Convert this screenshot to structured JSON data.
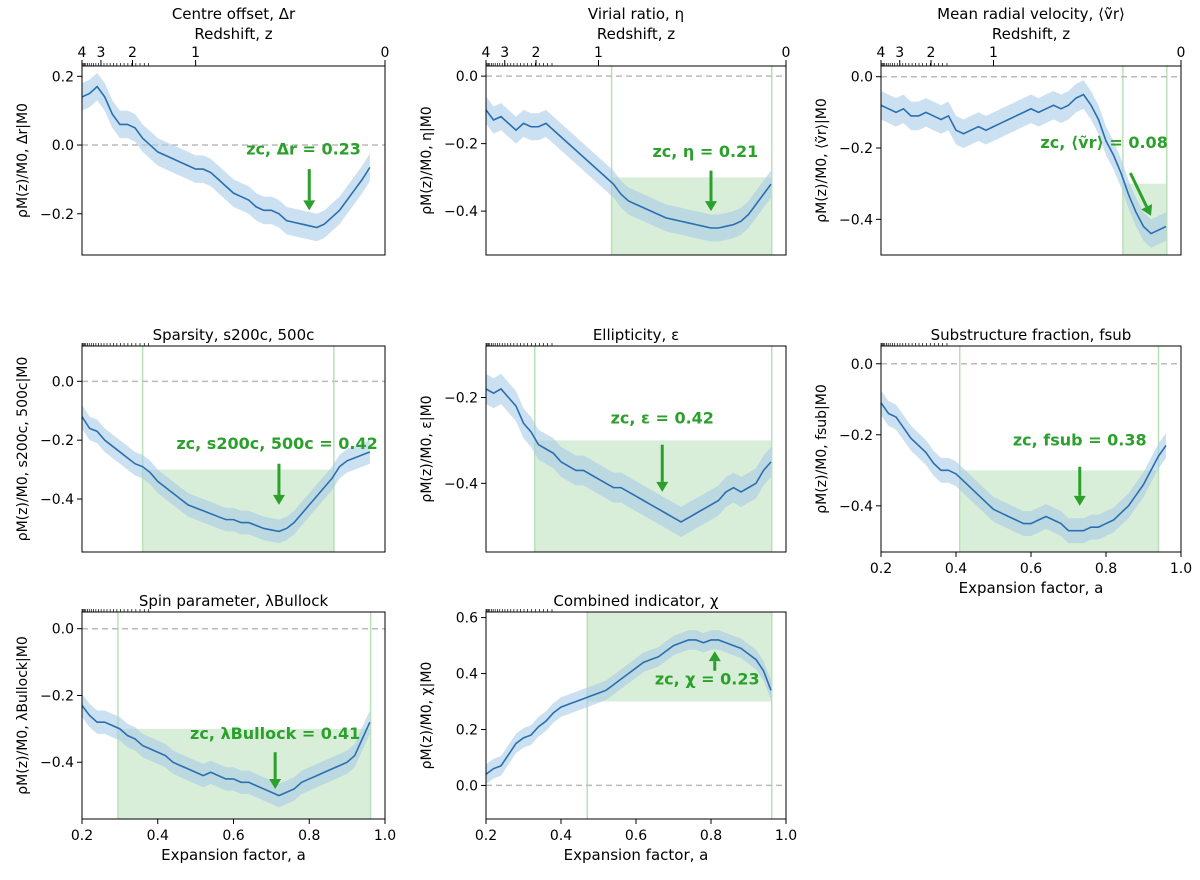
{
  "figure": {
    "xlabel": "Expansion factor, a",
    "top_axis_label": "Redshift, z",
    "colors": {
      "line": "#2a6fb0",
      "band": "#a9cbe8",
      "highlight": "#b9e0b9",
      "annotation": "#2ca02c",
      "zero": "#bbbbbb"
    }
  },
  "chart_data": [
    {
      "id": "centre-offset",
      "type": "line",
      "title": "Centre offset, Δr",
      "ylabel": "ρM(z)/M0, Δr|M0",
      "top_axis": true,
      "show_xticklabels": false,
      "xlim": [
        0.2,
        1.0
      ],
      "ylim": [
        -0.32,
        0.23
      ],
      "yticks": [
        0.2,
        0.0,
        -0.2
      ],
      "ytick_labels": [
        "0.2",
        "0.0",
        "−0.2"
      ],
      "highlight": null,
      "highlight_level": null,
      "annotation": {
        "text": "zc, Δr = 0.23",
        "label_pos": [
          0.785,
          -0.028
        ],
        "arrow_from": [
          0.8,
          -0.07
        ],
        "arrow_to": [
          0.8,
          -0.19
        ]
      },
      "x": [
        0.2,
        0.22,
        0.24,
        0.26,
        0.28,
        0.3,
        0.32,
        0.34,
        0.36,
        0.38,
        0.4,
        0.42,
        0.44,
        0.46,
        0.48,
        0.5,
        0.52,
        0.54,
        0.56,
        0.58,
        0.6,
        0.62,
        0.64,
        0.66,
        0.68,
        0.7,
        0.72,
        0.74,
        0.76,
        0.78,
        0.8,
        0.82,
        0.84,
        0.86,
        0.88,
        0.9,
        0.92,
        0.94,
        0.96
      ],
      "y": [
        0.14,
        0.15,
        0.17,
        0.14,
        0.09,
        0.06,
        0.06,
        0.05,
        0.02,
        0.0,
        -0.02,
        -0.03,
        -0.04,
        -0.05,
        -0.06,
        -0.07,
        -0.07,
        -0.08,
        -0.1,
        -0.12,
        -0.14,
        -0.15,
        -0.16,
        -0.18,
        -0.19,
        -0.19,
        -0.2,
        -0.22,
        -0.225,
        -0.23,
        -0.235,
        -0.24,
        -0.23,
        -0.21,
        -0.19,
        -0.16,
        -0.13,
        -0.1,
        -0.065
      ],
      "band_halfwidth": 0.04
    },
    {
      "id": "virial-ratio",
      "type": "line",
      "title": "Virial ratio, η",
      "ylabel": "ρM(z)/M0, η|M0",
      "top_axis": true,
      "show_xticklabels": false,
      "xlim": [
        0.2,
        1.0
      ],
      "ylim": [
        -0.53,
        0.03
      ],
      "yticks": [
        0.0,
        -0.2,
        -0.4
      ],
      "ytick_labels": [
        "0.0",
        "−0.2",
        "−0.4"
      ],
      "highlight": [
        0.535,
        0.962
      ],
      "highlight_level": -0.3,
      "annotation": {
        "text": "zc, η = 0.21",
        "label_pos": [
          0.785,
          -0.24
        ],
        "arrow_from": [
          0.8,
          -0.28
        ],
        "arrow_to": [
          0.8,
          -0.4
        ]
      },
      "x": [
        0.2,
        0.22,
        0.24,
        0.26,
        0.28,
        0.3,
        0.32,
        0.34,
        0.36,
        0.38,
        0.4,
        0.42,
        0.44,
        0.46,
        0.48,
        0.5,
        0.52,
        0.54,
        0.56,
        0.58,
        0.6,
        0.62,
        0.64,
        0.66,
        0.68,
        0.7,
        0.72,
        0.74,
        0.76,
        0.78,
        0.8,
        0.82,
        0.84,
        0.86,
        0.88,
        0.9,
        0.92,
        0.94,
        0.96
      ],
      "y": [
        -0.1,
        -0.13,
        -0.12,
        -0.14,
        -0.16,
        -0.14,
        -0.15,
        -0.15,
        -0.14,
        -0.16,
        -0.18,
        -0.2,
        -0.22,
        -0.24,
        -0.26,
        -0.28,
        -0.3,
        -0.32,
        -0.35,
        -0.37,
        -0.38,
        -0.39,
        -0.4,
        -0.41,
        -0.42,
        -0.425,
        -0.43,
        -0.435,
        -0.44,
        -0.445,
        -0.45,
        -0.45,
        -0.445,
        -0.44,
        -0.43,
        -0.41,
        -0.38,
        -0.35,
        -0.32
      ],
      "band_halfwidth": 0.04
    },
    {
      "id": "mean-radial-velocity",
      "type": "line",
      "title": "Mean radial velocity, ⟨ṽr⟩",
      "ylabel": "ρM(z)/M0, ⟨ṽr⟩|M0",
      "top_axis": true,
      "show_xticklabels": false,
      "xlim": [
        0.2,
        1.0
      ],
      "ylim": [
        -0.5,
        0.03
      ],
      "yticks": [
        0.0,
        -0.2,
        -0.4
      ],
      "ytick_labels": [
        "0.0",
        "−0.2",
        "−0.4"
      ],
      "highlight": [
        0.845,
        0.962
      ],
      "highlight_level": -0.3,
      "annotation": {
        "text": "zc, ⟨ṽr⟩ = 0.08",
        "label_pos": [
          0.795,
          -0.2
        ],
        "arrow_from": [
          0.865,
          -0.27
        ],
        "arrow_to": [
          0.92,
          -0.39
        ]
      },
      "x": [
        0.2,
        0.22,
        0.24,
        0.26,
        0.28,
        0.3,
        0.32,
        0.34,
        0.36,
        0.38,
        0.4,
        0.42,
        0.44,
        0.46,
        0.48,
        0.5,
        0.52,
        0.54,
        0.56,
        0.58,
        0.6,
        0.62,
        0.64,
        0.66,
        0.68,
        0.7,
        0.72,
        0.74,
        0.76,
        0.78,
        0.8,
        0.82,
        0.84,
        0.86,
        0.88,
        0.9,
        0.92,
        0.94,
        0.96
      ],
      "y": [
        -0.08,
        -0.09,
        -0.1,
        -0.09,
        -0.11,
        -0.11,
        -0.1,
        -0.11,
        -0.12,
        -0.11,
        -0.15,
        -0.16,
        -0.15,
        -0.14,
        -0.15,
        -0.14,
        -0.13,
        -0.12,
        -0.11,
        -0.1,
        -0.09,
        -0.1,
        -0.09,
        -0.08,
        -0.09,
        -0.08,
        -0.06,
        -0.05,
        -0.08,
        -0.12,
        -0.18,
        -0.22,
        -0.27,
        -0.33,
        -0.38,
        -0.42,
        -0.44,
        -0.43,
        -0.42
      ],
      "band_halfwidth": 0.04
    },
    {
      "id": "sparsity",
      "type": "line",
      "title": "Sparsity, s200c, 500c",
      "ylabel": "ρM(z)/M0, s200c, 500c|M0",
      "top_axis": false,
      "show_xticklabels": false,
      "xlim": [
        0.2,
        1.0
      ],
      "ylim": [
        -0.58,
        0.12
      ],
      "yticks": [
        0.0,
        -0.2,
        -0.4
      ],
      "ytick_labels": [
        "0.0",
        "−0.2",
        "−0.4"
      ],
      "highlight": [
        0.36,
        0.865
      ],
      "highlight_level": -0.3,
      "annotation": {
        "text": "zc, s200c, 500c = 0.42",
        "label_pos": [
          0.715,
          -0.23
        ],
        "arrow_from": [
          0.72,
          -0.28
        ],
        "arrow_to": [
          0.72,
          -0.42
        ]
      },
      "x": [
        0.2,
        0.22,
        0.24,
        0.26,
        0.28,
        0.3,
        0.32,
        0.34,
        0.36,
        0.38,
        0.4,
        0.42,
        0.44,
        0.46,
        0.48,
        0.5,
        0.52,
        0.54,
        0.56,
        0.58,
        0.6,
        0.62,
        0.64,
        0.66,
        0.68,
        0.7,
        0.72,
        0.74,
        0.76,
        0.78,
        0.8,
        0.82,
        0.84,
        0.86,
        0.88,
        0.9,
        0.92,
        0.94,
        0.96
      ],
      "y": [
        -0.12,
        -0.16,
        -0.17,
        -0.2,
        -0.22,
        -0.24,
        -0.26,
        -0.28,
        -0.29,
        -0.31,
        -0.34,
        -0.36,
        -0.38,
        -0.4,
        -0.42,
        -0.43,
        -0.44,
        -0.45,
        -0.46,
        -0.47,
        -0.47,
        -0.48,
        -0.48,
        -0.49,
        -0.5,
        -0.505,
        -0.51,
        -0.5,
        -0.48,
        -0.45,
        -0.42,
        -0.39,
        -0.36,
        -0.33,
        -0.29,
        -0.27,
        -0.26,
        -0.25,
        -0.24
      ],
      "band_halfwidth": 0.04
    },
    {
      "id": "ellipticity",
      "type": "line",
      "title": "Ellipticity, ε",
      "ylabel": "ρM(z)/M0, ε|M0",
      "top_axis": false,
      "show_xticklabels": false,
      "xlim": [
        0.2,
        1.0
      ],
      "ylim": [
        -0.56,
        -0.08
      ],
      "yticks": [
        -0.2,
        -0.4
      ],
      "ytick_labels": [
        "−0.2",
        "−0.4"
      ],
      "highlight": [
        0.33,
        0.962
      ],
      "highlight_level": -0.3,
      "annotation": {
        "text": "zc, ε = 0.42",
        "label_pos": [
          0.67,
          -0.26
        ],
        "arrow_from": [
          0.67,
          -0.31
        ],
        "arrow_to": [
          0.67,
          -0.42
        ]
      },
      "x": [
        0.2,
        0.22,
        0.24,
        0.26,
        0.28,
        0.3,
        0.32,
        0.34,
        0.36,
        0.38,
        0.4,
        0.42,
        0.44,
        0.46,
        0.48,
        0.5,
        0.52,
        0.54,
        0.56,
        0.58,
        0.6,
        0.62,
        0.64,
        0.66,
        0.68,
        0.7,
        0.72,
        0.74,
        0.76,
        0.78,
        0.8,
        0.82,
        0.84,
        0.86,
        0.88,
        0.9,
        0.92,
        0.94,
        0.96
      ],
      "y": [
        -0.18,
        -0.19,
        -0.18,
        -0.2,
        -0.22,
        -0.26,
        -0.28,
        -0.31,
        -0.32,
        -0.33,
        -0.35,
        -0.36,
        -0.37,
        -0.37,
        -0.38,
        -0.39,
        -0.4,
        -0.41,
        -0.41,
        -0.42,
        -0.43,
        -0.44,
        -0.45,
        -0.46,
        -0.47,
        -0.48,
        -0.49,
        -0.48,
        -0.47,
        -0.46,
        -0.45,
        -0.44,
        -0.42,
        -0.41,
        -0.42,
        -0.41,
        -0.4,
        -0.37,
        -0.35
      ],
      "band_halfwidth": 0.035
    },
    {
      "id": "substructure-fraction",
      "type": "line",
      "title": "Substructure fraction, fsub",
      "ylabel": "ρM(z)/M0, fsub|M0",
      "top_axis": false,
      "show_xticklabels": true,
      "xlim": [
        0.2,
        1.0
      ],
      "ylim": [
        -0.53,
        0.05
      ],
      "xticks": [
        0.2,
        0.4,
        0.6,
        0.8,
        1.0
      ],
      "xtick_labels": [
        "0.2",
        "0.4",
        "0.6",
        "0.8",
        "1.0"
      ],
      "yticks": [
        0.0,
        -0.2,
        -0.4
      ],
      "ytick_labels": [
        "0.0",
        "−0.2",
        "−0.4"
      ],
      "highlight": [
        0.41,
        0.94
      ],
      "highlight_level": -0.3,
      "annotation": {
        "text": "zc, fsub = 0.38",
        "label_pos": [
          0.73,
          -0.23
        ],
        "arrow_from": [
          0.73,
          -0.29
        ],
        "arrow_to": [
          0.73,
          -0.4
        ]
      },
      "x": [
        0.2,
        0.22,
        0.24,
        0.26,
        0.28,
        0.3,
        0.32,
        0.34,
        0.36,
        0.38,
        0.4,
        0.42,
        0.44,
        0.46,
        0.48,
        0.5,
        0.52,
        0.54,
        0.56,
        0.58,
        0.6,
        0.62,
        0.64,
        0.66,
        0.68,
        0.7,
        0.72,
        0.74,
        0.76,
        0.78,
        0.8,
        0.82,
        0.84,
        0.86,
        0.88,
        0.9,
        0.92,
        0.94,
        0.96
      ],
      "y": [
        -0.11,
        -0.14,
        -0.15,
        -0.18,
        -0.21,
        -0.23,
        -0.25,
        -0.28,
        -0.3,
        -0.3,
        -0.31,
        -0.33,
        -0.35,
        -0.37,
        -0.39,
        -0.41,
        -0.42,
        -0.43,
        -0.44,
        -0.45,
        -0.45,
        -0.44,
        -0.43,
        -0.44,
        -0.45,
        -0.47,
        -0.47,
        -0.47,
        -0.46,
        -0.46,
        -0.45,
        -0.44,
        -0.42,
        -0.4,
        -0.37,
        -0.34,
        -0.3,
        -0.26,
        -0.23
      ],
      "band_halfwidth": 0.035
    },
    {
      "id": "spin-parameter",
      "type": "line",
      "title": "Spin parameter, λBullock",
      "ylabel": "ρM(z)/M0, λBullock|M0",
      "top_axis": false,
      "show_xticklabels": true,
      "xlim": [
        0.2,
        1.0
      ],
      "ylim": [
        -0.57,
        0.05
      ],
      "xticks": [
        0.2,
        0.4,
        0.6,
        0.8,
        1.0
      ],
      "xtick_labels": [
        "0.2",
        "0.4",
        "0.6",
        "0.8",
        "1.0"
      ],
      "yticks": [
        0.0,
        -0.2,
        -0.4
      ],
      "ytick_labels": [
        "0.0",
        "−0.2",
        "−0.4"
      ],
      "highlight": [
        0.295,
        0.962
      ],
      "highlight_level": -0.3,
      "annotation": {
        "text": "zc, λBullock = 0.41",
        "label_pos": [
          0.71,
          -0.33
        ],
        "arrow_from": [
          0.71,
          -0.37
        ],
        "arrow_to": [
          0.71,
          -0.48
        ]
      },
      "x": [
        0.2,
        0.22,
        0.24,
        0.26,
        0.28,
        0.3,
        0.32,
        0.34,
        0.36,
        0.38,
        0.4,
        0.42,
        0.44,
        0.46,
        0.48,
        0.5,
        0.52,
        0.54,
        0.56,
        0.58,
        0.6,
        0.62,
        0.64,
        0.66,
        0.68,
        0.7,
        0.72,
        0.74,
        0.76,
        0.78,
        0.8,
        0.82,
        0.84,
        0.86,
        0.88,
        0.9,
        0.92,
        0.94,
        0.96
      ],
      "y": [
        -0.23,
        -0.26,
        -0.28,
        -0.28,
        -0.29,
        -0.3,
        -0.32,
        -0.33,
        -0.35,
        -0.36,
        -0.37,
        -0.38,
        -0.4,
        -0.41,
        -0.42,
        -0.43,
        -0.44,
        -0.43,
        -0.44,
        -0.45,
        -0.45,
        -0.46,
        -0.46,
        -0.47,
        -0.48,
        -0.49,
        -0.5,
        -0.49,
        -0.48,
        -0.46,
        -0.45,
        -0.44,
        -0.43,
        -0.42,
        -0.41,
        -0.4,
        -0.38,
        -0.33,
        -0.28
      ],
      "band_halfwidth": 0.035
    },
    {
      "id": "combined-indicator",
      "type": "line",
      "title": "Combined indicator, χ",
      "ylabel": "ρM(z)/M0, χ|M0",
      "top_axis": false,
      "show_xticklabels": true,
      "xlim": [
        0.2,
        1.0
      ],
      "ylim": [
        -0.12,
        0.62
      ],
      "xticks": [
        0.2,
        0.4,
        0.6,
        0.8,
        1.0
      ],
      "xtick_labels": [
        "0.2",
        "0.4",
        "0.6",
        "0.8",
        "1.0"
      ],
      "yticks": [
        0.6,
        0.4,
        0.2,
        0.0
      ],
      "ytick_labels": [
        "0.6",
        "0.4",
        "0.2",
        "0.0"
      ],
      "highlight": [
        0.47,
        0.962
      ],
      "highlight_level": 0.3,
      "highlight_top": true,
      "annotation": {
        "text": "zc, χ = 0.23",
        "label_pos": [
          0.79,
          0.36
        ],
        "arrow_from": [
          0.81,
          0.41
        ],
        "arrow_to": [
          0.81,
          0.48
        ]
      },
      "x": [
        0.2,
        0.22,
        0.24,
        0.26,
        0.28,
        0.3,
        0.32,
        0.34,
        0.36,
        0.38,
        0.4,
        0.42,
        0.44,
        0.46,
        0.48,
        0.5,
        0.52,
        0.54,
        0.56,
        0.58,
        0.6,
        0.62,
        0.64,
        0.66,
        0.68,
        0.7,
        0.72,
        0.74,
        0.76,
        0.78,
        0.8,
        0.82,
        0.84,
        0.86,
        0.88,
        0.9,
        0.92,
        0.94,
        0.96
      ],
      "y": [
        0.04,
        0.06,
        0.07,
        0.11,
        0.15,
        0.17,
        0.18,
        0.21,
        0.23,
        0.26,
        0.28,
        0.29,
        0.3,
        0.31,
        0.32,
        0.33,
        0.34,
        0.36,
        0.38,
        0.4,
        0.42,
        0.44,
        0.45,
        0.46,
        0.48,
        0.5,
        0.51,
        0.52,
        0.52,
        0.51,
        0.52,
        0.52,
        0.51,
        0.5,
        0.49,
        0.47,
        0.45,
        0.41,
        0.34
      ],
      "band_halfwidth": 0.035
    }
  ]
}
